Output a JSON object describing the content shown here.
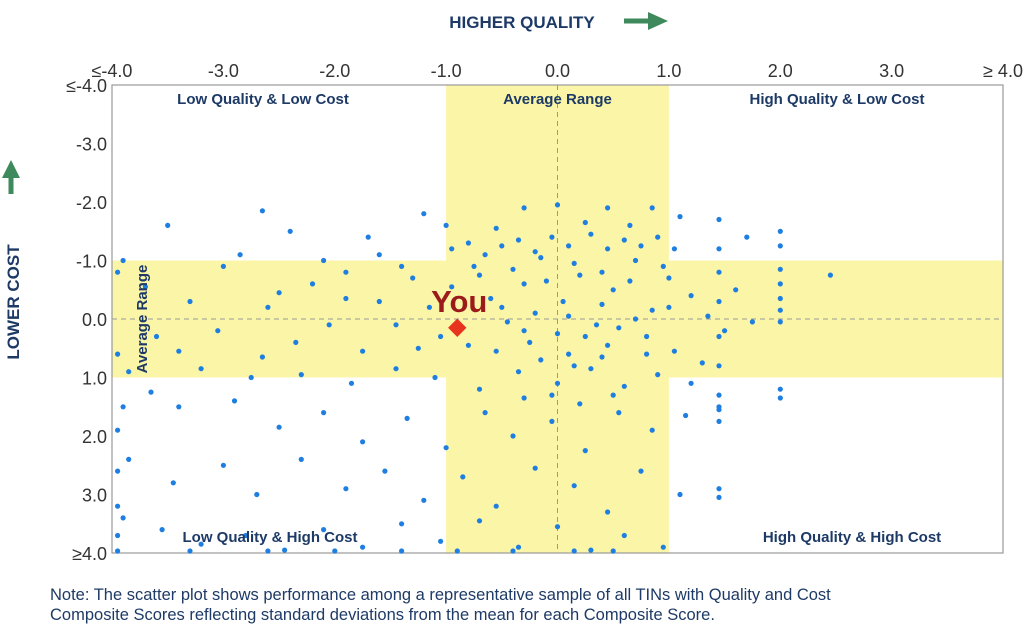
{
  "colors": {
    "point": "#1f7fe0",
    "highlight": "#e8331f",
    "you_label": "#9b1b1b",
    "band": "#fbf5a8",
    "axis_text": "#1d3a66",
    "tick_text": "#333333",
    "arrow": "#3f8a5c",
    "frame": "#9a9a9a",
    "refline": "#9a9a9a"
  },
  "chart_data": {
    "type": "scatter",
    "top_axis_title": "HIGHER QUALITY",
    "left_axis_title": "LOWER COST",
    "x_ticks": [
      "≤-4.0",
      "-3.0",
      "-2.0",
      "-1.0",
      "0.0",
      "1.0",
      "2.0",
      "3.0",
      "≥ 4.0"
    ],
    "y_ticks": [
      "≤-4.0",
      "-3.0",
      "-2.0",
      "-1.0",
      "0.0",
      "1.0",
      "2.0",
      "3.0",
      "≥4.0"
    ],
    "xlim": [
      -4,
      4
    ],
    "ylim": [
      -4,
      4
    ],
    "y_axis_inverted": true,
    "average_range": [
      -1,
      1
    ],
    "quadrant_labels": {
      "top_left": "Low Quality & Low Cost",
      "top_center": "Average Range",
      "top_right": "High Quality & Low Cost",
      "bottom_left": "Low Quality & High Cost",
      "bottom_right": "High Quality & High Cost",
      "left_center": "Average Range"
    },
    "highlight": {
      "label": "You",
      "x": -0.9,
      "y": 0.15
    },
    "points": [
      [
        -2.65,
        -1.85
      ],
      [
        -1.2,
        -1.8
      ],
      [
        -0.3,
        -1.9
      ],
      [
        0.0,
        -1.95
      ],
      [
        0.45,
        -1.9
      ],
      [
        0.85,
        -1.9
      ],
      [
        1.1,
        -1.75
      ],
      [
        -3.5,
        -1.6
      ],
      [
        -2.4,
        -1.5
      ],
      [
        -1.7,
        -1.4
      ],
      [
        -1.0,
        -1.6
      ],
      [
        -0.55,
        -1.55
      ],
      [
        0.25,
        -1.65
      ],
      [
        0.65,
        -1.6
      ],
      [
        1.7,
        -1.4
      ],
      [
        2.0,
        -1.5
      ],
      [
        -3.9,
        -1.0
      ],
      [
        -3.7,
        -0.55
      ],
      [
        -3.0,
        -0.9
      ],
      [
        -2.85,
        -1.1
      ],
      [
        -2.2,
        -0.6
      ],
      [
        -1.9,
        -0.8
      ],
      [
        -1.6,
        -0.3
      ],
      [
        -1.45,
        0.1
      ],
      [
        -1.3,
        -0.7
      ],
      [
        -1.15,
        -0.2
      ],
      [
        -0.95,
        -0.55
      ],
      [
        -0.75,
        -0.9
      ],
      [
        -0.6,
        -0.35
      ],
      [
        -0.45,
        0.05
      ],
      [
        -0.3,
        -0.6
      ],
      [
        -0.15,
        -1.05
      ],
      [
        0.05,
        -0.3
      ],
      [
        0.2,
        -0.75
      ],
      [
        0.35,
        0.1
      ],
      [
        0.5,
        -0.5
      ],
      [
        0.7,
        -1.0
      ],
      [
        0.85,
        -0.15
      ],
      [
        1.0,
        -0.7
      ],
      [
        1.2,
        -0.4
      ],
      [
        1.35,
        -0.05
      ],
      [
        1.6,
        -0.5
      ],
      [
        1.75,
        0.05
      ],
      [
        2.0,
        -0.85
      ],
      [
        2.0,
        -0.35
      ],
      [
        2.0,
        0.05
      ],
      [
        2.45,
        -0.75
      ],
      [
        -3.3,
        -0.3
      ],
      [
        -3.05,
        0.2
      ],
      [
        -2.6,
        -0.2
      ],
      [
        -2.35,
        0.4
      ],
      [
        -2.05,
        0.1
      ],
      [
        -1.75,
        0.55
      ],
      [
        -1.25,
        0.5
      ],
      [
        -1.05,
        0.3
      ],
      [
        -0.8,
        0.45
      ],
      [
        -0.55,
        0.55
      ],
      [
        -0.25,
        0.4
      ],
      [
        0.1,
        0.6
      ],
      [
        0.45,
        0.45
      ],
      [
        0.8,
        0.3
      ],
      [
        1.05,
        0.55
      ],
      [
        1.3,
        0.75
      ],
      [
        1.5,
        0.2
      ],
      [
        -3.85,
        0.9
      ],
      [
        -3.6,
        0.3
      ],
      [
        -3.2,
        0.85
      ],
      [
        -2.75,
        1.0
      ],
      [
        -2.3,
        0.95
      ],
      [
        -1.85,
        1.1
      ],
      [
        -1.45,
        0.85
      ],
      [
        -1.1,
        1.0
      ],
      [
        -0.7,
        1.2
      ],
      [
        -0.35,
        0.9
      ],
      [
        0.0,
        1.1
      ],
      [
        0.3,
        0.85
      ],
      [
        0.6,
        1.15
      ],
      [
        0.9,
        0.95
      ],
      [
        1.2,
        1.1
      ],
      [
        1.45,
        1.3
      ],
      [
        2.0,
        1.2
      ],
      [
        2.0,
        1.35
      ],
      [
        -3.9,
        1.5
      ],
      [
        -3.4,
        1.5
      ],
      [
        -2.9,
        1.4
      ],
      [
        -2.5,
        1.85
      ],
      [
        -2.1,
        1.6
      ],
      [
        -1.75,
        2.1
      ],
      [
        -1.35,
        1.7
      ],
      [
        -1.0,
        2.2
      ],
      [
        -0.65,
        1.6
      ],
      [
        -0.4,
        2.0
      ],
      [
        -0.05,
        1.75
      ],
      [
        0.25,
        2.25
      ],
      [
        0.55,
        1.6
      ],
      [
        0.85,
        1.9
      ],
      [
        1.15,
        1.65
      ],
      [
        1.45,
        1.55
      ],
      [
        -3.85,
        2.4
      ],
      [
        -3.45,
        2.8
      ],
      [
        -3.0,
        2.5
      ],
      [
        -2.7,
        3.0
      ],
      [
        -2.3,
        2.4
      ],
      [
        -1.9,
        2.9
      ],
      [
        -1.55,
        2.6
      ],
      [
        -1.2,
        3.1
      ],
      [
        -0.85,
        2.7
      ],
      [
        -0.55,
        3.2
      ],
      [
        -0.2,
        2.55
      ],
      [
        0.15,
        2.85
      ],
      [
        0.45,
        3.3
      ],
      [
        0.75,
        2.6
      ],
      [
        1.1,
        3.0
      ],
      [
        1.45,
        3.05
      ],
      [
        -3.9,
        3.4
      ],
      [
        -3.55,
        3.6
      ],
      [
        -3.2,
        3.85
      ],
      [
        -2.8,
        3.7
      ],
      [
        -2.45,
        3.95
      ],
      [
        -2.1,
        3.6
      ],
      [
        -1.75,
        3.9
      ],
      [
        -1.4,
        3.5
      ],
      [
        -1.05,
        3.8
      ],
      [
        -0.7,
        3.45
      ],
      [
        -0.35,
        3.9
      ],
      [
        0.0,
        3.55
      ],
      [
        0.3,
        3.95
      ],
      [
        0.6,
        3.7
      ],
      [
        0.95,
        3.9
      ],
      [
        -3.95,
        4.0
      ],
      [
        -3.3,
        4.0
      ],
      [
        -2.6,
        4.0
      ],
      [
        -2.0,
        4.0
      ],
      [
        -1.4,
        4.0
      ],
      [
        -0.9,
        4.0
      ],
      [
        -0.4,
        4.0
      ],
      [
        0.15,
        4.0
      ],
      [
        0.5,
        4.0
      ],
      [
        -0.95,
        -1.2
      ],
      [
        -0.8,
        -1.3
      ],
      [
        -0.65,
        -1.1
      ],
      [
        -0.5,
        -1.25
      ],
      [
        -0.35,
        -1.35
      ],
      [
        -0.2,
        -1.15
      ],
      [
        -0.05,
        -1.4
      ],
      [
        0.1,
        -1.25
      ],
      [
        0.3,
        -1.45
      ],
      [
        0.45,
        -1.2
      ],
      [
        0.6,
        -1.35
      ],
      [
        0.75,
        -1.25
      ],
      [
        0.9,
        -1.4
      ],
      [
        1.05,
        -1.2
      ],
      [
        -0.7,
        -0.75
      ],
      [
        -0.4,
        -0.85
      ],
      [
        -0.1,
        -0.65
      ],
      [
        0.15,
        -0.95
      ],
      [
        0.4,
        -0.8
      ],
      [
        0.65,
        -0.65
      ],
      [
        0.95,
        -0.9
      ],
      [
        -0.5,
        -0.2
      ],
      [
        -0.2,
        -0.1
      ],
      [
        0.1,
        -0.05
      ],
      [
        0.4,
        -0.25
      ],
      [
        0.7,
        0.0
      ],
      [
        1.0,
        -0.2
      ],
      [
        -0.3,
        0.2
      ],
      [
        0.0,
        0.25
      ],
      [
        0.25,
        0.3
      ],
      [
        0.55,
        0.15
      ],
      [
        0.8,
        0.6
      ],
      [
        -0.15,
        0.7
      ],
      [
        0.15,
        0.8
      ],
      [
        0.4,
        0.65
      ],
      [
        -0.05,
        1.3
      ],
      [
        0.2,
        1.45
      ],
      [
        -0.3,
        1.35
      ],
      [
        0.5,
        1.3
      ],
      [
        1.45,
        -1.7
      ],
      [
        1.45,
        -1.2
      ],
      [
        1.45,
        -0.8
      ],
      [
        1.45,
        -0.3
      ],
      [
        1.45,
        0.3
      ],
      [
        1.45,
        0.8
      ],
      [
        1.45,
        1.5
      ],
      [
        1.45,
        1.75
      ],
      [
        1.45,
        2.9
      ],
      [
        2.0,
        -1.25
      ],
      [
        2.0,
        -0.6
      ],
      [
        2.0,
        -0.15
      ],
      [
        -1.6,
        -1.1
      ],
      [
        -1.4,
        -0.9
      ],
      [
        -1.9,
        -0.35
      ],
      [
        -2.1,
        -1.0
      ],
      [
        -2.5,
        -0.45
      ],
      [
        -2.65,
        0.65
      ],
      [
        -3.4,
        0.55
      ],
      [
        -3.65,
        1.25
      ],
      [
        -3.95,
        -0.8
      ],
      [
        -3.95,
        0.6
      ],
      [
        -3.95,
        1.9
      ],
      [
        -3.95,
        2.6
      ],
      [
        -3.95,
        3.2
      ],
      [
        -3.95,
        3.7
      ]
    ]
  },
  "note": {
    "line1": "Note: The scatter plot shows performance among a representative sample of all TINs with Quality and Cost",
    "line2": "Composite Scores reflecting standard deviations from the mean for each Composite Score."
  }
}
